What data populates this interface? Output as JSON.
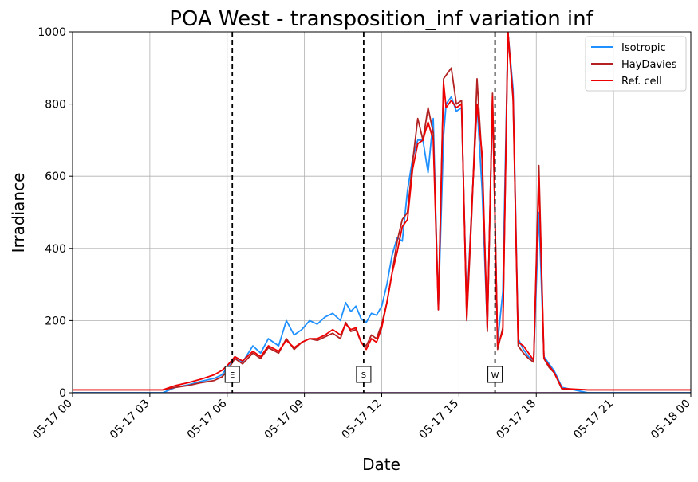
{
  "chart_data": {
    "type": "line",
    "title": "POA West - transposition_inf variation inf",
    "xlabel": "Date",
    "ylabel": "Irradiance",
    "x_unit": "hours since 05-17 00:00",
    "xlim": [
      0,
      24
    ],
    "ylim": [
      0,
      1000
    ],
    "x_ticks": [
      0,
      3,
      6,
      9,
      12,
      15,
      18,
      21,
      24
    ],
    "x_tick_labels": [
      "05-17 00",
      "05-17 03",
      "05-17 06",
      "05-17 09",
      "05-17 12",
      "05-17 15",
      "05-17 18",
      "05-17 21",
      "05-18 00"
    ],
    "y_ticks": [
      0,
      200,
      400,
      600,
      800,
      1000
    ],
    "y_tick_labels": [
      "0",
      "200",
      "400",
      "600",
      "800",
      "1000"
    ],
    "grid": true,
    "legend_position": "top-right",
    "vlines": [
      {
        "x": 6.2,
        "label": "E"
      },
      {
        "x": 11.3,
        "label": "S"
      },
      {
        "x": 16.4,
        "label": "W"
      }
    ],
    "series": [
      {
        "name": "Isotropic",
        "color": "#1e90ff",
        "x": [
          0,
          3.5,
          4,
          4.5,
          5,
          5.5,
          5.8,
          6,
          6.3,
          6.6,
          7,
          7.3,
          7.6,
          8,
          8.3,
          8.6,
          8.9,
          9.2,
          9.5,
          9.8,
          10.1,
          10.4,
          10.6,
          10.8,
          11,
          11.2,
          11.4,
          11.6,
          11.8,
          12,
          12.2,
          12.4,
          12.6,
          12.8,
          13,
          13.2,
          13.4,
          13.6,
          13.8,
          14,
          14.2,
          14.4,
          14.5,
          14.7,
          14.9,
          15.1,
          15.3,
          15.5,
          15.7,
          15.9,
          16.1,
          16.3,
          16.5,
          16.7,
          16.9,
          17.1,
          17.3,
          17.5,
          17.7,
          17.9,
          18.1,
          18.3,
          18.5,
          18.7,
          19,
          20,
          22,
          24
        ],
        "y": [
          0,
          0,
          15,
          22,
          32,
          40,
          50,
          70,
          100,
          85,
          130,
          110,
          150,
          130,
          200,
          160,
          175,
          200,
          190,
          210,
          220,
          200,
          250,
          225,
          240,
          205,
          195,
          220,
          215,
          240,
          300,
          380,
          430,
          420,
          560,
          650,
          700,
          700,
          610,
          760,
          230,
          710,
          800,
          820,
          780,
          790,
          230,
          520,
          800,
          560,
          180,
          810,
          140,
          280,
          1000,
          840,
          150,
          120,
          100,
          90,
          500,
          100,
          80,
          60,
          15,
          0,
          0,
          0
        ]
      },
      {
        "name": "HayDavies",
        "color": "#b22222",
        "x": [
          0,
          3.5,
          4,
          4.5,
          5,
          5.5,
          5.8,
          6,
          6.3,
          6.6,
          7,
          7.3,
          7.6,
          8,
          8.3,
          8.6,
          8.9,
          9.2,
          9.5,
          9.8,
          10.1,
          10.4,
          10.6,
          10.8,
          11,
          11.2,
          11.4,
          11.6,
          11.8,
          12,
          12.2,
          12.4,
          12.6,
          12.8,
          13,
          13.2,
          13.4,
          13.6,
          13.8,
          14,
          14.2,
          14.4,
          14.5,
          14.7,
          14.9,
          15.1,
          15.3,
          15.5,
          15.7,
          15.9,
          16.1,
          16.3,
          16.5,
          16.7,
          16.9,
          17.1,
          17.3,
          17.5,
          17.7,
          17.9,
          18.1,
          18.3,
          18.5,
          18.7,
          19,
          20,
          22,
          24
        ],
        "y": [
          8,
          8,
          15,
          20,
          28,
          34,
          44,
          60,
          95,
          80,
          110,
          95,
          125,
          110,
          150,
          120,
          140,
          150,
          145,
          155,
          165,
          150,
          195,
          170,
          175,
          140,
          130,
          160,
          150,
          190,
          250,
          330,
          420,
          480,
          500,
          640,
          760,
          700,
          790,
          720,
          240,
          870,
          880,
          900,
          800,
          810,
          200,
          500,
          870,
          640,
          170,
          830,
          120,
          180,
          1000,
          810,
          130,
          110,
          95,
          85,
          630,
          95,
          70,
          55,
          10,
          8,
          8,
          8
        ]
      },
      {
        "name": "Ref. cell",
        "color": "#ee0000",
        "x": [
          0,
          3.5,
          4,
          4.5,
          5,
          5.5,
          5.8,
          6,
          6.3,
          6.6,
          7,
          7.3,
          7.6,
          8,
          8.3,
          8.6,
          8.9,
          9.2,
          9.5,
          9.8,
          10.1,
          10.4,
          10.6,
          10.8,
          11,
          11.2,
          11.4,
          11.6,
          11.8,
          12,
          12.2,
          12.4,
          12.6,
          12.8,
          13,
          13.2,
          13.4,
          13.6,
          13.8,
          14,
          14.2,
          14.4,
          14.5,
          14.7,
          14.9,
          15.1,
          15.3,
          15.5,
          15.7,
          15.9,
          16.1,
          16.3,
          16.5,
          16.7,
          16.9,
          17.1,
          17.3,
          17.5,
          17.7,
          17.9,
          18.1,
          18.3,
          18.5,
          18.7,
          19,
          20,
          22,
          24
        ],
        "y": [
          8,
          8,
          20,
          28,
          38,
          50,
          62,
          75,
          100,
          88,
          115,
          100,
          130,
          115,
          145,
          125,
          140,
          150,
          150,
          160,
          175,
          160,
          190,
          175,
          180,
          140,
          120,
          150,
          140,
          180,
          250,
          330,
          390,
          460,
          480,
          620,
          690,
          700,
          750,
          700,
          230,
          860,
          790,
          810,
          790,
          800,
          210,
          520,
          800,
          660,
          180,
          820,
          130,
          170,
          1000,
          820,
          140,
          130,
          110,
          90,
          600,
          95,
          75,
          55,
          12,
          8,
          8,
          8
        ]
      }
    ]
  }
}
